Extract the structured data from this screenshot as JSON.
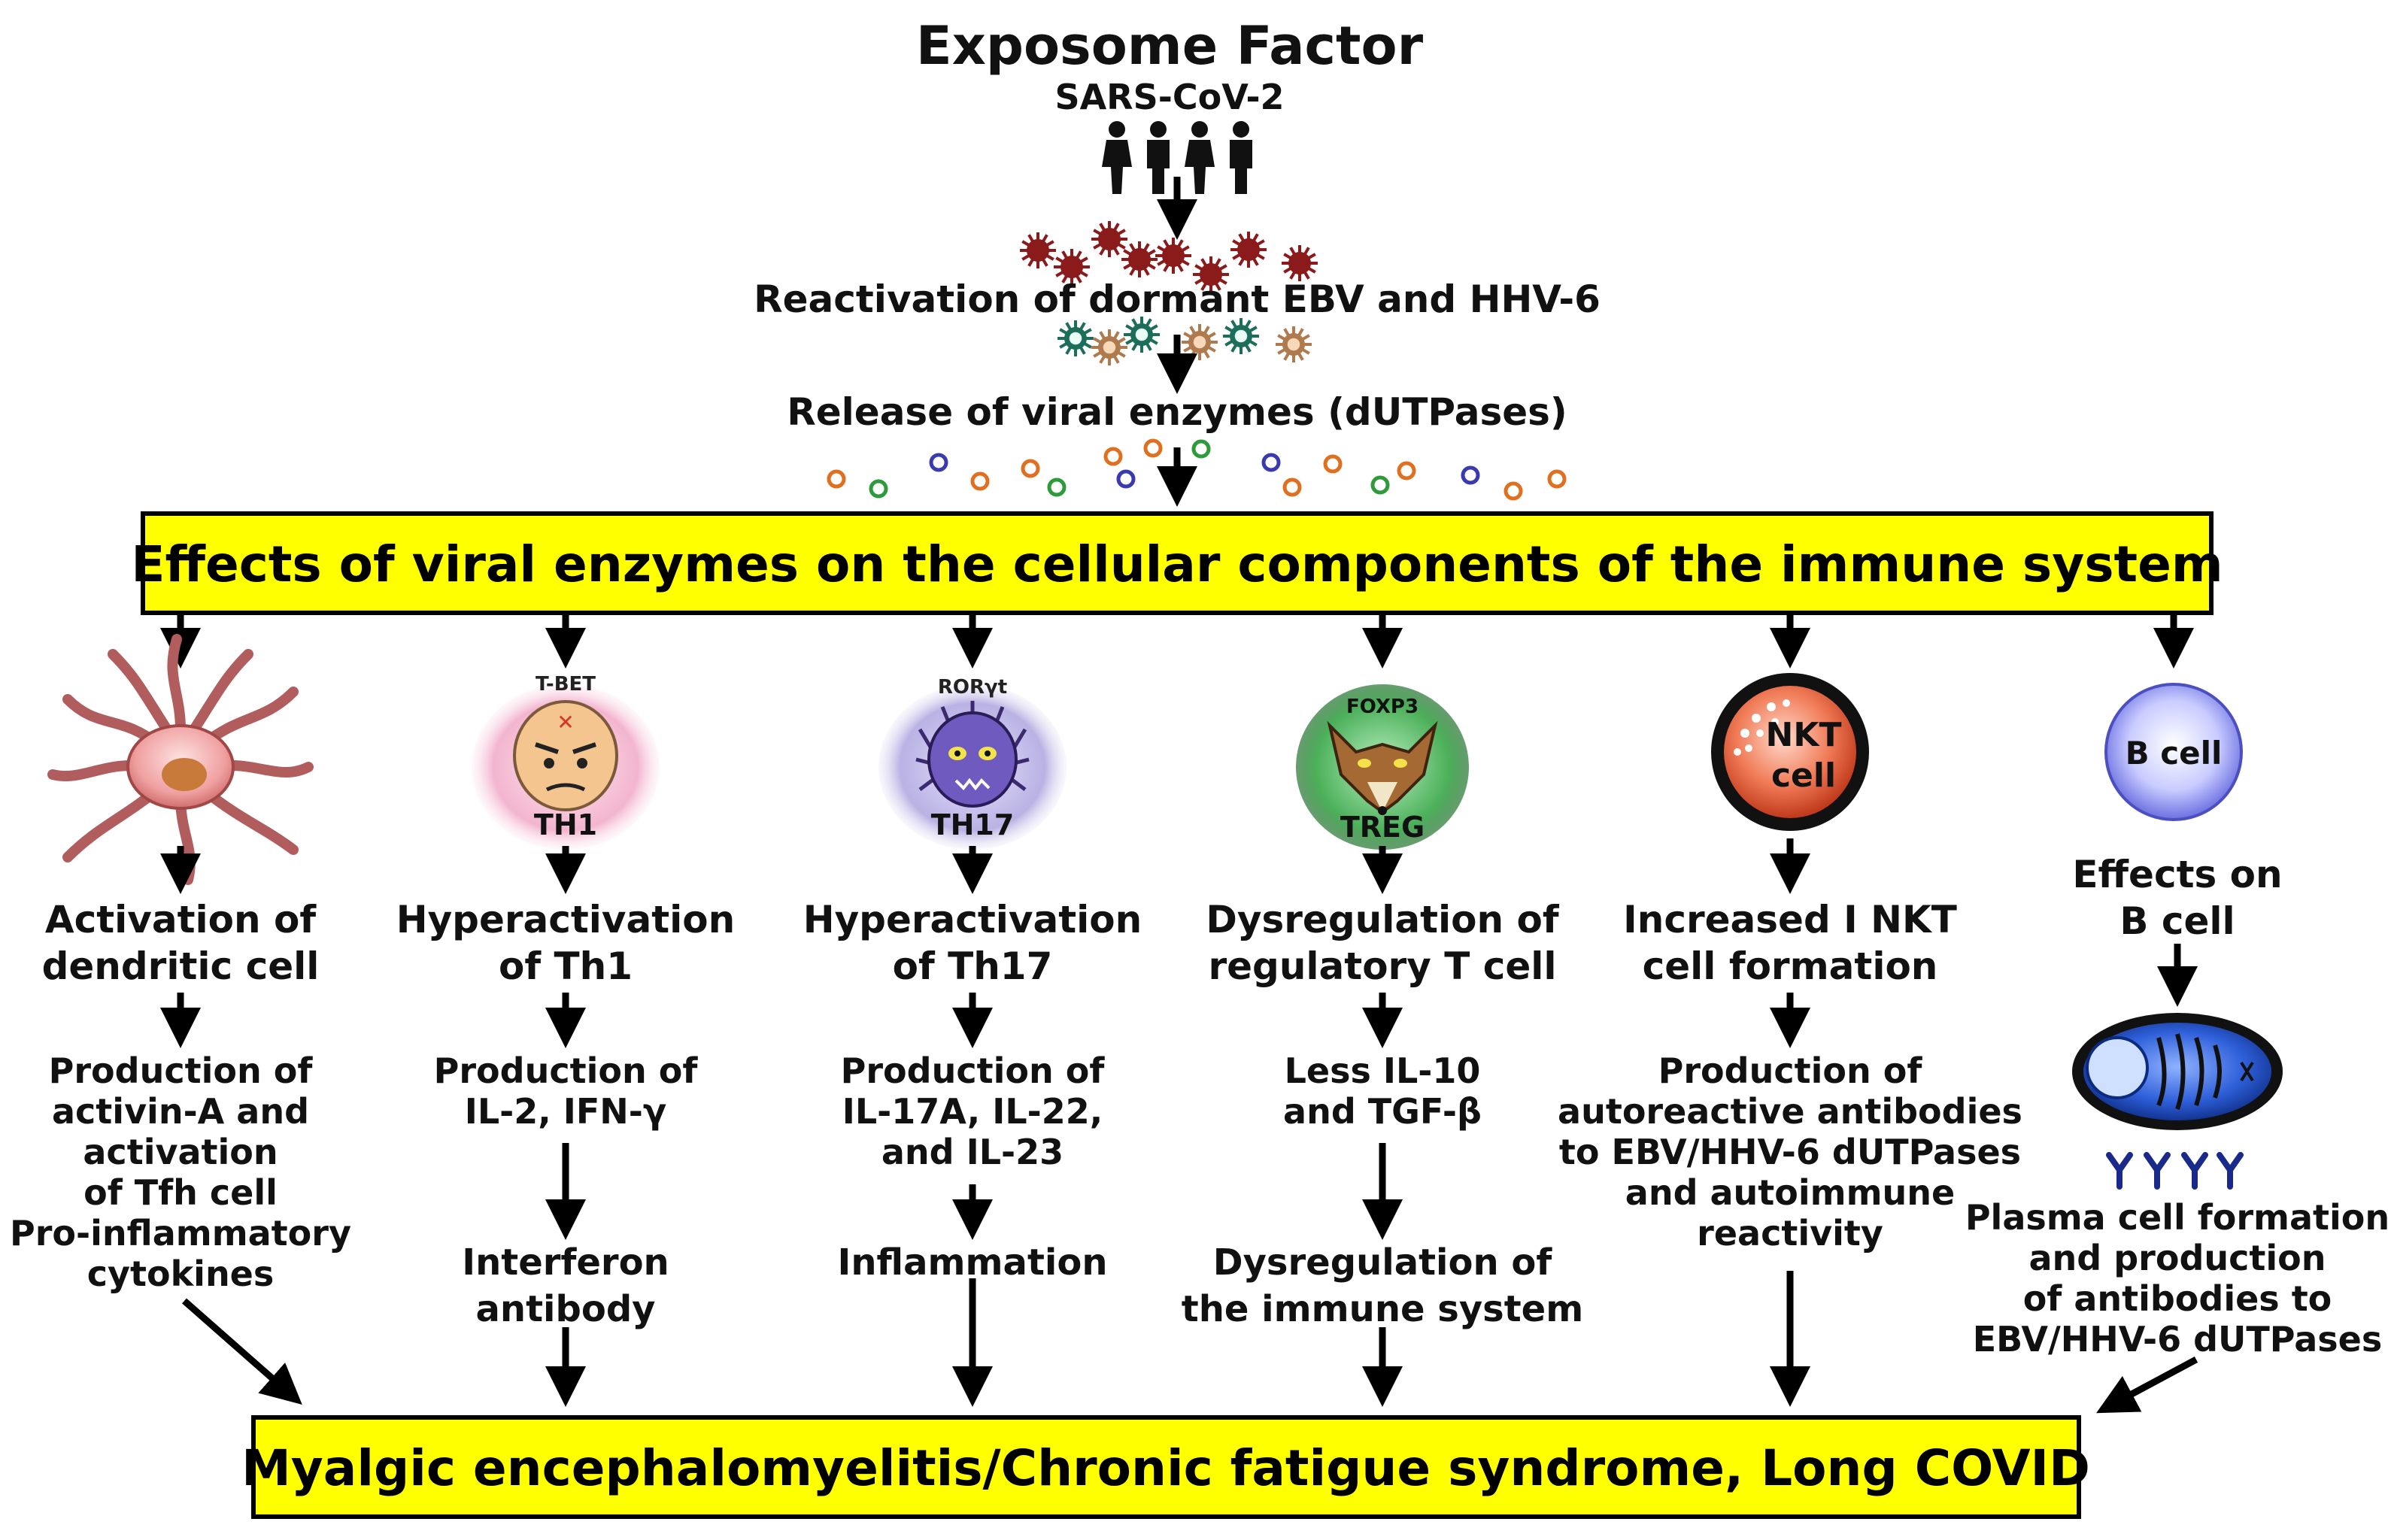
{
  "header": {
    "title": "Exposome Factor",
    "virus": "SARS-CoV-2",
    "reactivation": "Reactivation of dormant EBV and HHV-6",
    "release": "Release of viral enzymes (dUTPases)"
  },
  "banner_top": "Effects of viral enzymes on the cellular components of the immune system",
  "banner_bottom": "Myalgic encephalomyelitis/Chronic fatigue syndrome, Long COVID",
  "columns": [
    {
      "cell_label": "",
      "effect": [
        "Activation of",
        "dendritic cell"
      ],
      "outcome": [
        "Production of",
        "activin-A and",
        "activation",
        "of Tfh cell",
        "Pro-inflammatory",
        "cytokines"
      ],
      "result": []
    },
    {
      "cell_marker": "T-BET",
      "cell_label": "TH1",
      "effect": [
        "Hyperactivation",
        "of Th1"
      ],
      "outcome": [
        "Production of",
        "IL-2, IFN-γ"
      ],
      "result": [
        "Interferon",
        "antibody"
      ]
    },
    {
      "cell_marker": "RORγt",
      "cell_label": "TH17",
      "effect": [
        "Hyperactivation",
        "of Th17"
      ],
      "outcome": [
        "Production of",
        "IL-17A, IL-22,",
        "and IL-23"
      ],
      "result": [
        "Inflammation"
      ]
    },
    {
      "cell_marker": "FOXP3",
      "cell_label": "TREG",
      "effect": [
        "Dysregulation of",
        "regulatory T  cell"
      ],
      "outcome": [
        "Less IL-10",
        "and TGF-β"
      ],
      "result": [
        "Dysregulation of",
        "the immune system"
      ]
    },
    {
      "cell_label_lines": [
        "NKT",
        "cell"
      ],
      "effect": [
        "Increased I NKT",
        "cell formation"
      ],
      "outcome": [
        "Production of",
        "autoreactive antibodies",
        "to EBV/HHV-6 dUTPases",
        "and autoimmune",
        "reactivity"
      ],
      "result": []
    },
    {
      "cell_label": "B cell",
      "effect": [
        "Effects on",
        "B cell"
      ],
      "outcome": [
        "Plasma cell formation",
        "and production",
        "of antibodies to",
        "EBV/HHV-6 dUTPases"
      ],
      "result": []
    }
  ],
  "colors": {
    "banner_fill": "#FFFF00",
    "virus_dark_red": "#8B1A1A",
    "dendritic_pink": "#F0A0A0",
    "th1_pink": "#F3B5CF",
    "th17_lavender": "#B9B2E3",
    "treg_green": "#4CB05A",
    "nkt_red": "#E4603C",
    "bcell_blue": "#6B6FE0",
    "plasma_blue": "#2E5FD9"
  }
}
